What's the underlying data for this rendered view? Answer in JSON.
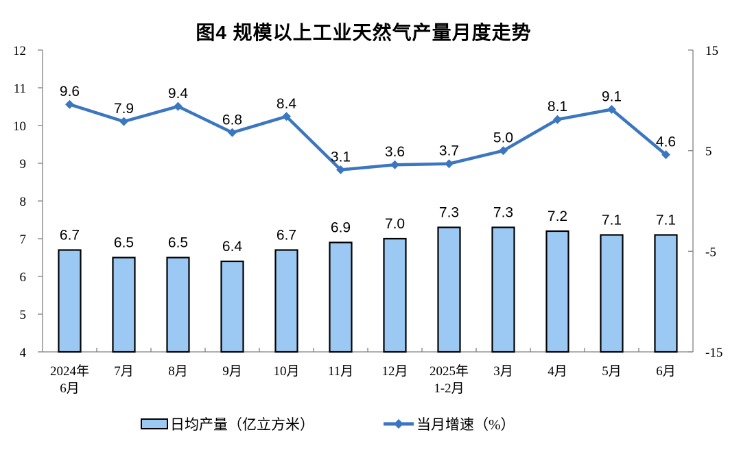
{
  "title": "图4 规模以上工业天然气产量月度走势",
  "colors": {
    "bar_fill": "#9CC9F3",
    "bar_border": "#000000",
    "line": "#3B76C1",
    "axis": "#7F7F7F",
    "label_text": "#000000"
  },
  "legend": [
    {
      "label": "日均产量（亿立方米）",
      "marker": "bar-swatch-icon"
    },
    {
      "label": "当月增速（%）",
      "marker": "line-diamond-swatch-icon"
    }
  ],
  "chart_data": {
    "type": "bar",
    "subtype": "combo-bar-line-dual-axis",
    "title": "图4 规模以上工业天然气产量月度走势",
    "categories": [
      [
        "2024年",
        "6月"
      ],
      [
        "7月"
      ],
      [
        "8月"
      ],
      [
        "9月"
      ],
      [
        "10月"
      ],
      [
        "11月"
      ],
      [
        "12月"
      ],
      [
        "2025年",
        "1-2月"
      ],
      [
        "3月"
      ],
      [
        "4月"
      ],
      [
        "5月"
      ],
      [
        "6月"
      ]
    ],
    "series": [
      {
        "name": "日均产量（亿立方米）",
        "type": "bar",
        "axis": "left",
        "values": [
          6.7,
          6.5,
          6.5,
          6.4,
          6.7,
          6.9,
          7.0,
          7.3,
          7.3,
          7.2,
          7.1,
          7.1
        ]
      },
      {
        "name": "当月增速（%）",
        "type": "line",
        "axis": "right",
        "values": [
          9.6,
          7.9,
          9.4,
          6.8,
          8.4,
          3.1,
          3.6,
          3.7,
          5.0,
          8.1,
          9.1,
          4.6
        ]
      }
    ],
    "left_axis": {
      "min": 4,
      "max": 12,
      "ticks": [
        12,
        11,
        10,
        9,
        8,
        7,
        6,
        5,
        4
      ]
    },
    "right_axis": {
      "min": -15,
      "max": 15,
      "ticks": [
        15,
        5,
        -5,
        -15
      ]
    },
    "grid": false,
    "legend_position": "bottom",
    "data_labels": true
  }
}
